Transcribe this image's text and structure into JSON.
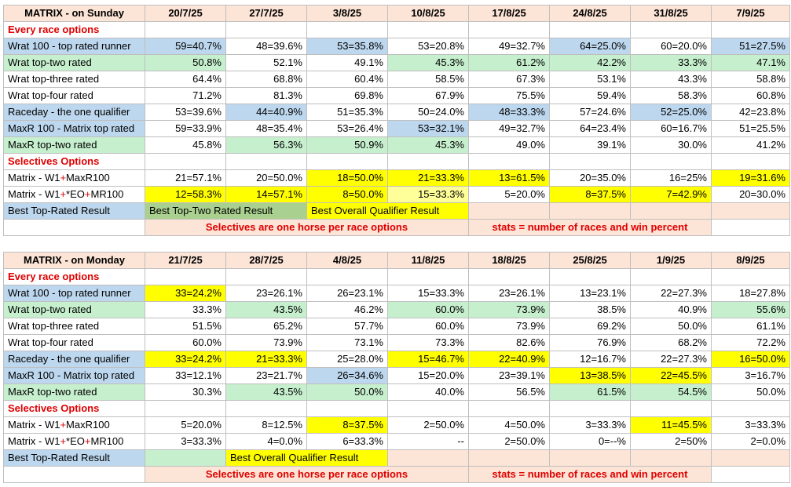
{
  "tables": [
    {
      "id": "sun",
      "title": "MATRIX - on Sunday",
      "dates": [
        "20/7/25",
        "27/7/25",
        "3/8/25",
        "10/8/25",
        "17/8/25",
        "24/8/25",
        "31/8/25",
        "7/9/25"
      ],
      "section_every": "Every race options",
      "rows_every": [
        {
          "label": "Wrat 100 - top rated runner",
          "label_color": "blue",
          "cells": [
            {
              "v": "59=40.7%",
              "c": "blue"
            },
            {
              "v": "48=39.6%",
              "c": ""
            },
            {
              "v": "53=35.8%",
              "c": "blue"
            },
            {
              "v": "53=20.8%",
              "c": ""
            },
            {
              "v": "49=32.7%",
              "c": ""
            },
            {
              "v": "64=25.0%",
              "c": "blue"
            },
            {
              "v": "60=20.0%",
              "c": ""
            },
            {
              "v": "51=27.5%",
              "c": "blue"
            }
          ]
        },
        {
          "label": "Wrat top-two rated",
          "label_color": "green",
          "cells": [
            {
              "v": "50.8%",
              "c": "green"
            },
            {
              "v": "52.1%",
              "c": ""
            },
            {
              "v": "49.1%",
              "c": ""
            },
            {
              "v": "45.3%",
              "c": "green"
            },
            {
              "v": "61.2%",
              "c": "green"
            },
            {
              "v": "42.2%",
              "c": "green"
            },
            {
              "v": "33.3%",
              "c": "green"
            },
            {
              "v": "47.1%",
              "c": "green"
            }
          ]
        },
        {
          "label": "Wrat top-three rated",
          "label_color": "",
          "cells": [
            {
              "v": "64.4%",
              "c": ""
            },
            {
              "v": "68.8%",
              "c": ""
            },
            {
              "v": "60.4%",
              "c": ""
            },
            {
              "v": "58.5%",
              "c": ""
            },
            {
              "v": "67.3%",
              "c": ""
            },
            {
              "v": "53.1%",
              "c": ""
            },
            {
              "v": "43.3%",
              "c": ""
            },
            {
              "v": "58.8%",
              "c": ""
            }
          ]
        },
        {
          "label": "Wrat top-four rated",
          "label_color": "",
          "cells": [
            {
              "v": "71.2%",
              "c": ""
            },
            {
              "v": "81.3%",
              "c": ""
            },
            {
              "v": "69.8%",
              "c": ""
            },
            {
              "v": "67.9%",
              "c": ""
            },
            {
              "v": "75.5%",
              "c": ""
            },
            {
              "v": "59.4%",
              "c": ""
            },
            {
              "v": "58.3%",
              "c": ""
            },
            {
              "v": "60.8%",
              "c": ""
            }
          ]
        },
        {
          "label": "Raceday - the one qualifier",
          "label_color": "blue",
          "cells": [
            {
              "v": "53=39.6%",
              "c": ""
            },
            {
              "v": "44=40.9%",
              "c": "blue"
            },
            {
              "v": "51=35.3%",
              "c": ""
            },
            {
              "v": "50=24.0%",
              "c": ""
            },
            {
              "v": "48=33.3%",
              "c": "blue"
            },
            {
              "v": "57=24.6%",
              "c": ""
            },
            {
              "v": "52=25.0%",
              "c": "blue"
            },
            {
              "v": "42=23.8%",
              "c": ""
            }
          ]
        },
        {
          "label": "MaxR 100 - Matrix top rated",
          "label_color": "blue",
          "cells": [
            {
              "v": "59=33.9%",
              "c": ""
            },
            {
              "v": "48=35.4%",
              "c": ""
            },
            {
              "v": "53=26.4%",
              "c": ""
            },
            {
              "v": "53=32.1%",
              "c": "blue"
            },
            {
              "v": "49=32.7%",
              "c": ""
            },
            {
              "v": "64=23.4%",
              "c": ""
            },
            {
              "v": "60=16.7%",
              "c": ""
            },
            {
              "v": "51=25.5%",
              "c": ""
            }
          ]
        },
        {
          "label": "MaxR top-two rated",
          "label_color": "green",
          "cells": [
            {
              "v": "45.8%",
              "c": ""
            },
            {
              "v": "56.3%",
              "c": "green"
            },
            {
              "v": "50.9%",
              "c": "green"
            },
            {
              "v": "45.3%",
              "c": "green"
            },
            {
              "v": "49.0%",
              "c": ""
            },
            {
              "v": "39.1%",
              "c": ""
            },
            {
              "v": "30.0%",
              "c": ""
            },
            {
              "v": "41.2%",
              "c": ""
            }
          ]
        }
      ],
      "section_sel": "Selectives Options",
      "rows_sel": [
        {
          "label_a": "Matrix - W1",
          "label_b": "MaxR100",
          "cells": [
            {
              "v": "21=57.1%",
              "c": ""
            },
            {
              "v": "20=50.0%",
              "c": ""
            },
            {
              "v": "18=50.0%",
              "c": "yellow"
            },
            {
              "v": "21=33.3%",
              "c": "yellow"
            },
            {
              "v": "13=61.5%",
              "c": "yellow"
            },
            {
              "v": "20=35.0%",
              "c": ""
            },
            {
              "v": "16=25%",
              "c": ""
            },
            {
              "v": "19=31.6%",
              "c": "yellow"
            }
          ]
        },
        {
          "label_a": "Matrix - W1",
          "label_b": "*EO",
          "label_c": "MR100",
          "cells": [
            {
              "v": "12=58.3%",
              "c": "yellow"
            },
            {
              "v": "14=57.1%",
              "c": "yellow"
            },
            {
              "v": "8=50.0%",
              "c": "yellow"
            },
            {
              "v": "15=33.3%",
              "c": "ltyellow"
            },
            {
              "v": "5=20.0%",
              "c": ""
            },
            {
              "v": "8=37.5%",
              "c": "yellow"
            },
            {
              "v": "7=42.9%",
              "c": "yellow"
            },
            {
              "v": "20=30.0%",
              "c": ""
            }
          ]
        }
      ],
      "legend": {
        "a": "Best Top-Rated Result",
        "b": "Best Top-Two Rated Result",
        "c": "Best Overall Qualifier Result"
      },
      "foot": {
        "left": "Selectives are one horse per race options",
        "right": "stats = number of races and win percent"
      }
    },
    {
      "id": "mon",
      "title": "MATRIX - on Monday",
      "dates": [
        "21/7/25",
        "28/7/25",
        "4/8/25",
        "11/8/25",
        "18/8/25",
        "25/8/25",
        "1/9/25",
        "8/9/25"
      ],
      "section_every": "Every race options",
      "rows_every": [
        {
          "label": "Wrat 100 - top rated runner",
          "label_color": "blue",
          "cells": [
            {
              "v": "33=24.2%",
              "c": "yellow"
            },
            {
              "v": "23=26.1%",
              "c": ""
            },
            {
              "v": "26=23.1%",
              "c": ""
            },
            {
              "v": "15=33.3%",
              "c": ""
            },
            {
              "v": "23=26.1%",
              "c": ""
            },
            {
              "v": "13=23.1%",
              "c": ""
            },
            {
              "v": "22=27.3%",
              "c": ""
            },
            {
              "v": "18=27.8%",
              "c": ""
            }
          ]
        },
        {
          "label": "Wrat top-two rated",
          "label_color": "green",
          "cells": [
            {
              "v": "33.3%",
              "c": ""
            },
            {
              "v": "43.5%",
              "c": "green"
            },
            {
              "v": "46.2%",
              "c": ""
            },
            {
              "v": "60.0%",
              "c": "green"
            },
            {
              "v": "73.9%",
              "c": "green"
            },
            {
              "v": "38.5%",
              "c": ""
            },
            {
              "v": "40.9%",
              "c": ""
            },
            {
              "v": "55.6%",
              "c": "green"
            }
          ]
        },
        {
          "label": "Wrat top-three rated",
          "label_color": "",
          "cells": [
            {
              "v": "51.5%",
              "c": ""
            },
            {
              "v": "65.2%",
              "c": ""
            },
            {
              "v": "57.7%",
              "c": ""
            },
            {
              "v": "60.0%",
              "c": ""
            },
            {
              "v": "73.9%",
              "c": ""
            },
            {
              "v": "69.2%",
              "c": ""
            },
            {
              "v": "50.0%",
              "c": ""
            },
            {
              "v": "61.1%",
              "c": ""
            }
          ]
        },
        {
          "label": "Wrat top-four rated",
          "label_color": "",
          "cells": [
            {
              "v": "60.0%",
              "c": ""
            },
            {
              "v": "73.9%",
              "c": ""
            },
            {
              "v": "73.1%",
              "c": ""
            },
            {
              "v": "73.3%",
              "c": ""
            },
            {
              "v": "82.6%",
              "c": ""
            },
            {
              "v": "76.9%",
              "c": ""
            },
            {
              "v": "68.2%",
              "c": ""
            },
            {
              "v": "72.2%",
              "c": ""
            }
          ]
        },
        {
          "label": "Raceday - the one qualifier",
          "label_color": "blue",
          "cells": [
            {
              "v": "33=24.2%",
              "c": "yellow"
            },
            {
              "v": "21=33.3%",
              "c": "yellow"
            },
            {
              "v": "25=28.0%",
              "c": ""
            },
            {
              "v": "15=46.7%",
              "c": "yellow"
            },
            {
              "v": "22=40.9%",
              "c": "yellow"
            },
            {
              "v": "12=16.7%",
              "c": ""
            },
            {
              "v": "22=27.3%",
              "c": ""
            },
            {
              "v": "16=50.0%",
              "c": "yellow"
            }
          ]
        },
        {
          "label": "MaxR 100 - Matrix top rated",
          "label_color": "blue",
          "cells": [
            {
              "v": "33=12.1%",
              "c": ""
            },
            {
              "v": "23=21.7%",
              "c": ""
            },
            {
              "v": "26=34.6%",
              "c": "blue"
            },
            {
              "v": "15=20.0%",
              "c": ""
            },
            {
              "v": "23=39.1%",
              "c": ""
            },
            {
              "v": "13=38.5%",
              "c": "yellow"
            },
            {
              "v": "22=45.5%",
              "c": "yellow"
            },
            {
              "v": "3=16.7%",
              "c": ""
            }
          ]
        },
        {
          "label": "MaxR top-two rated",
          "label_color": "green",
          "cells": [
            {
              "v": "30.3%",
              "c": ""
            },
            {
              "v": "43.5%",
              "c": "green"
            },
            {
              "v": "50.0%",
              "c": "green"
            },
            {
              "v": "40.0%",
              "c": ""
            },
            {
              "v": "56.5%",
              "c": ""
            },
            {
              "v": "61.5%",
              "c": "green"
            },
            {
              "v": "54.5%",
              "c": "green"
            },
            {
              "v": "50.0%",
              "c": ""
            }
          ]
        }
      ],
      "section_sel": "Selectives Options",
      "rows_sel": [
        {
          "label_a": "Matrix - W1",
          "label_b": "MaxR100",
          "cells": [
            {
              "v": "5=20.0%",
              "c": ""
            },
            {
              "v": "8=12.5%",
              "c": ""
            },
            {
              "v": "8=37.5%",
              "c": "yellow"
            },
            {
              "v": "2=50.0%",
              "c": ""
            },
            {
              "v": "4=50.0%",
              "c": ""
            },
            {
              "v": "3=33.3%",
              "c": ""
            },
            {
              "v": "11=45.5%",
              "c": "yellow"
            },
            {
              "v": "3=33.3%",
              "c": ""
            }
          ]
        },
        {
          "label_a": "Matrix - W1",
          "label_b": "*EO",
          "label_c": "MR100",
          "cells": [
            {
              "v": "3=33.3%",
              "c": ""
            },
            {
              "v": "4=0.0%",
              "c": ""
            },
            {
              "v": "6=33.3%",
              "c": ""
            },
            {
              "v": "--",
              "c": ""
            },
            {
              "v": "2=50.0%",
              "c": ""
            },
            {
              "v": "0=--%",
              "c": ""
            },
            {
              "v": "2=50%",
              "c": ""
            },
            {
              "v": "2=0.0%",
              "c": ""
            }
          ]
        }
      ],
      "legend": {
        "a": "Best Top-Rated Result",
        "b": "",
        "c": "Best Overall Qualifier Result"
      },
      "foot": {
        "left": "Selectives are one horse per race options",
        "right": "stats = number of races and win percent"
      }
    }
  ]
}
